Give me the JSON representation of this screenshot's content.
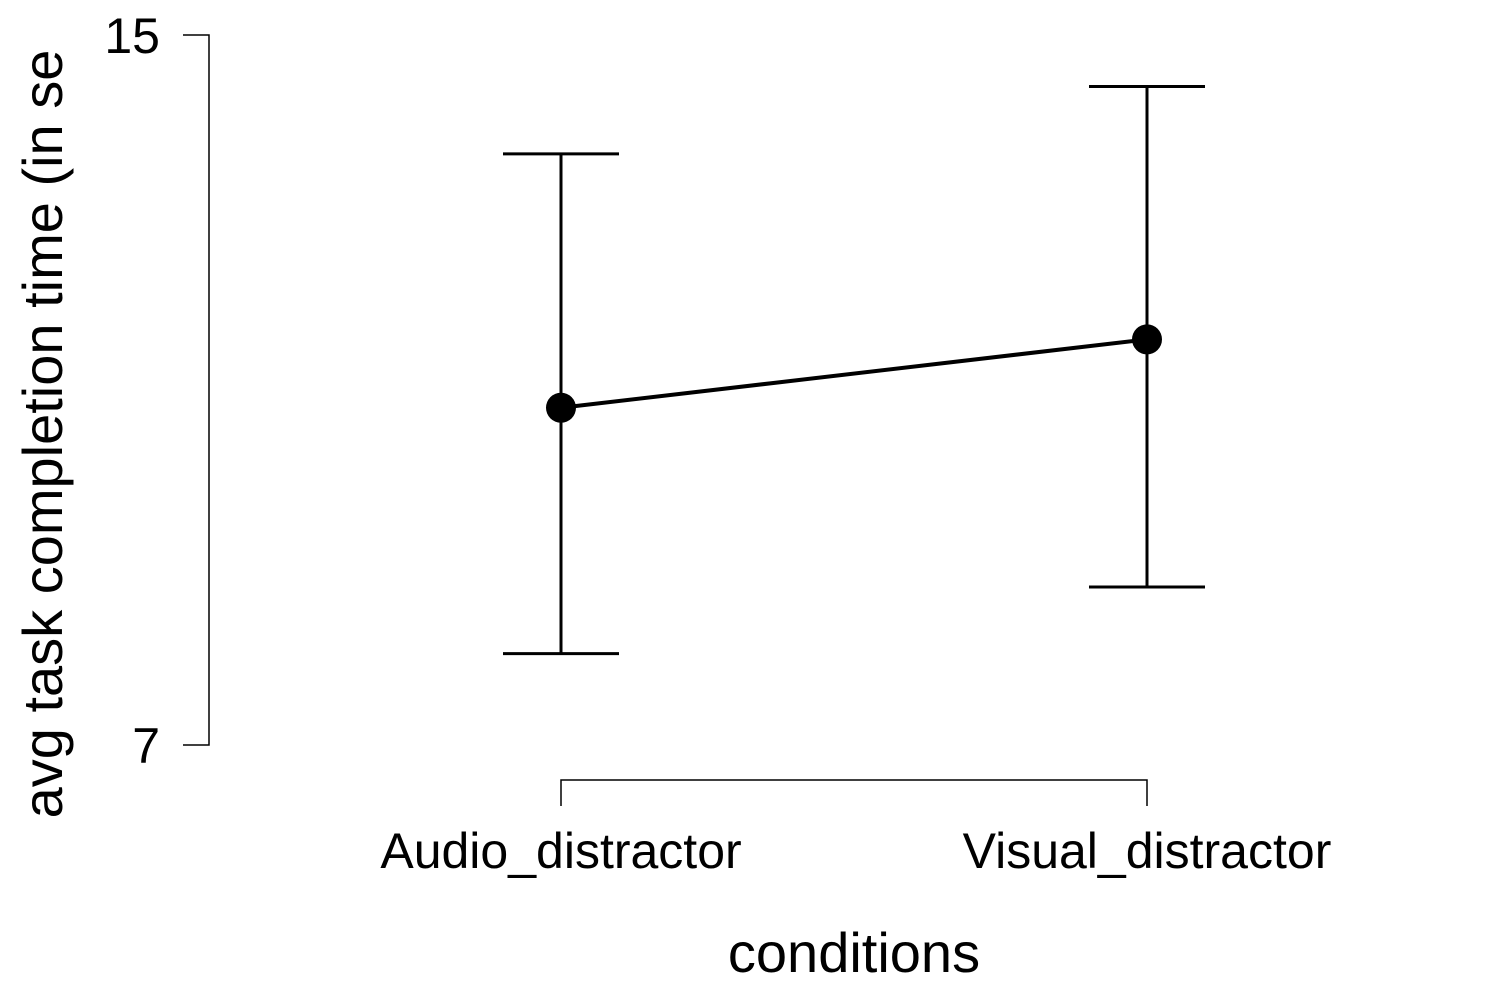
{
  "chart_data": {
    "type": "line",
    "title": "",
    "xlabel": "conditions",
    "ylabel": "avg task completion time (in se",
    "categories": [
      "Audio_distractor",
      "Visual_distractor"
    ],
    "values": [
      10.8,
      11.57
    ],
    "error_bars": [
      {
        "lower": 8.03,
        "upper": 13.66
      },
      {
        "lower": 8.78,
        "upper": 14.42
      }
    ],
    "ylim": [
      7,
      15
    ],
    "yticks": [
      "15",
      "7"
    ],
    "grid": false,
    "legend": "none",
    "colors": {
      "line": "#000000",
      "marker": "#000000",
      "background": "#ffffff"
    }
  }
}
